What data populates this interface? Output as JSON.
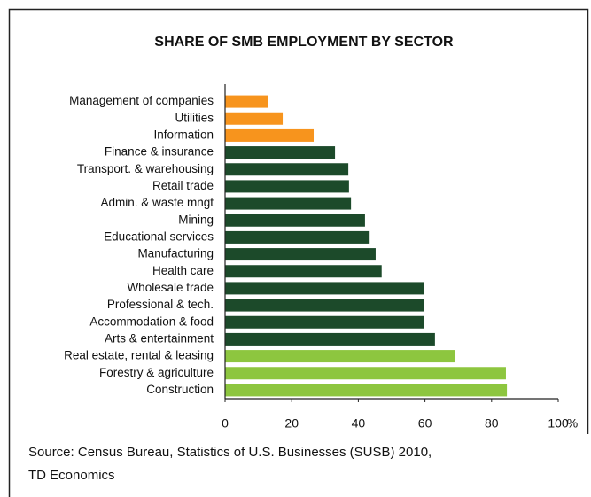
{
  "chart_data": {
    "type": "barh",
    "title": "SHARE OF SMB EMPLOYMENT BY SECTOR",
    "categories": [
      "Management of companies",
      "Utilities",
      "Information",
      "Finance & insurance",
      "Transport. & warehousing",
      "Retail trade",
      "Admin. & waste mngt",
      "Mining",
      "Educational services",
      "Manufacturing",
      "Health care",
      "Wholesale trade",
      "Professional & tech.",
      "Accommodation & food",
      "Arts & entertainment",
      "Real estate, rental & leasing",
      "Forestry & agriculture",
      "Construction"
    ],
    "values": [
      13,
      17.3,
      26.6,
      33,
      37,
      37.2,
      37.8,
      42,
      43.4,
      45.2,
      47,
      59.6,
      59.6,
      59.8,
      63,
      68.9,
      84.3,
      84.6
    ],
    "colors": [
      "#f7941d",
      "#f7941d",
      "#f7941d",
      "#1c4a2a",
      "#1c4a2a",
      "#1c4a2a",
      "#1c4a2a",
      "#1c4a2a",
      "#1c4a2a",
      "#1c4a2a",
      "#1c4a2a",
      "#1c4a2a",
      "#1c4a2a",
      "#1c4a2a",
      "#1c4a2a",
      "#8dc63f",
      "#8dc63f",
      "#8dc63f"
    ],
    "xlim": [
      0,
      100
    ],
    "xticks": [
      0,
      20,
      40,
      60,
      80,
      100
    ],
    "x_unit": "%",
    "source": [
      "Source: Census Bureau, Statistics of U.S. Businesses (SUSB) 2010,",
      "TD Economics"
    ]
  }
}
